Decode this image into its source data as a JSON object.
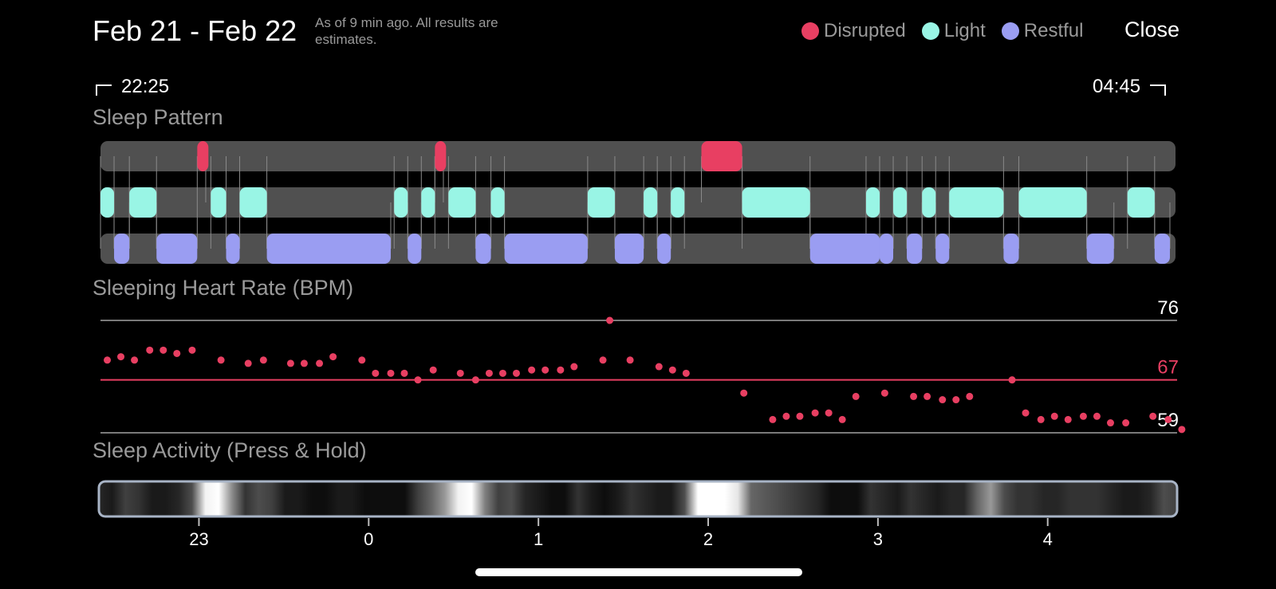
{
  "header": {
    "title": "Feb 21 - Feb 22",
    "subtitle": "As of 9 min ago. All results are estimates.",
    "close_label": "Close"
  },
  "legend": [
    {
      "label": "Disrupted",
      "color": "#e83f62"
    },
    {
      "label": "Light",
      "color": "#99f5e5"
    },
    {
      "label": "Restful",
      "color": "#9a9df2"
    }
  ],
  "time_range": {
    "start": "22:25",
    "end": "04:45"
  },
  "sections": {
    "sleep_pattern": "Sleep Pattern",
    "heart_rate": "Sleeping Heart Rate (BPM)",
    "activity": "Sleep Activity (Press & Hold)"
  },
  "chart_data": [
    {
      "type": "timeline",
      "title": "Sleep Pattern",
      "time_unit": "hours",
      "start_time": "22:25",
      "end_time": "04:45",
      "rows": [
        {
          "name": "Disrupted",
          "segments": [
            [
              0.57,
              0.62
            ],
            [
              1.97,
              2.02
            ],
            [
              3.54,
              3.78
            ]
          ]
        },
        {
          "name": "Light",
          "segments": [
            [
              0.0,
              0.08
            ],
            [
              0.17,
              0.33
            ],
            [
              0.65,
              0.74
            ],
            [
              0.82,
              0.98
            ],
            [
              1.73,
              1.81
            ],
            [
              1.89,
              1.97
            ],
            [
              2.05,
              2.21
            ],
            [
              2.3,
              2.38
            ],
            [
              2.87,
              3.03
            ],
            [
              3.2,
              3.28
            ],
            [
              3.36,
              3.44
            ],
            [
              3.78,
              4.18
            ],
            [
              4.51,
              4.59
            ],
            [
              4.67,
              4.75
            ],
            [
              4.84,
              4.92
            ],
            [
              5.0,
              5.32
            ],
            [
              5.41,
              5.81
            ],
            [
              6.05,
              6.21
            ]
          ]
        },
        {
          "name": "Restful",
          "segments": [
            [
              0.08,
              0.17
            ],
            [
              0.33,
              0.57
            ],
            [
              0.74,
              0.82
            ],
            [
              0.98,
              1.71
            ],
            [
              1.81,
              1.89
            ],
            [
              2.21,
              2.3
            ],
            [
              2.38,
              2.87
            ],
            [
              3.03,
              3.2
            ],
            [
              3.28,
              3.36
            ],
            [
              4.18,
              4.59
            ],
            [
              4.59,
              4.67
            ],
            [
              4.75,
              4.84
            ],
            [
              4.92,
              5.0
            ],
            [
              5.32,
              5.41
            ],
            [
              5.81,
              5.97
            ],
            [
              6.21,
              6.3
            ]
          ]
        }
      ]
    },
    {
      "type": "scatter",
      "title": "Sleeping Heart Rate (BPM)",
      "ylim": [
        59,
        76
      ],
      "reference_lines": [
        {
          "value": 76,
          "label": "76",
          "color": "#7a7a7a"
        },
        {
          "value": 67,
          "label": "67",
          "color": "#e83f62"
        },
        {
          "value": 59,
          "label": "59",
          "color": "#7a7a7a"
        }
      ],
      "x_label_note": "hours after 22:25",
      "points": [
        [
          0.04,
          70
        ],
        [
          0.12,
          70.5
        ],
        [
          0.2,
          70
        ],
        [
          0.29,
          71.5
        ],
        [
          0.37,
          71.5
        ],
        [
          0.45,
          71
        ],
        [
          0.54,
          71.5
        ],
        [
          0.71,
          70
        ],
        [
          0.87,
          69.5
        ],
        [
          0.96,
          70
        ],
        [
          1.12,
          69.5
        ],
        [
          1.2,
          69.5
        ],
        [
          1.29,
          69.5
        ],
        [
          1.37,
          70.5
        ],
        [
          1.54,
          70
        ],
        [
          1.62,
          68
        ],
        [
          1.71,
          68
        ],
        [
          1.79,
          68
        ],
        [
          1.87,
          67
        ],
        [
          1.96,
          68.5
        ],
        [
          2.12,
          68
        ],
        [
          2.21,
          67
        ],
        [
          2.29,
          68
        ],
        [
          2.37,
          68
        ],
        [
          2.45,
          68
        ],
        [
          2.54,
          68.5
        ],
        [
          2.62,
          68.5
        ],
        [
          2.71,
          68.5
        ],
        [
          2.79,
          69
        ],
        [
          2.96,
          70
        ],
        [
          3.0,
          76
        ],
        [
          3.12,
          70
        ],
        [
          3.29,
          69
        ],
        [
          3.37,
          68.5
        ],
        [
          3.45,
          68
        ],
        [
          3.79,
          65
        ],
        [
          3.96,
          61
        ],
        [
          4.04,
          61.5
        ],
        [
          4.12,
          61.5
        ],
        [
          4.21,
          62
        ],
        [
          4.29,
          62
        ],
        [
          4.37,
          61
        ],
        [
          4.45,
          64.5
        ],
        [
          4.62,
          65
        ],
        [
          4.79,
          64.5
        ],
        [
          4.87,
          64.5
        ],
        [
          4.96,
          64
        ],
        [
          5.04,
          64
        ],
        [
          5.12,
          64.5
        ],
        [
          5.37,
          67
        ],
        [
          5.45,
          62
        ],
        [
          5.54,
          61
        ],
        [
          5.62,
          61.5
        ],
        [
          5.7,
          61
        ],
        [
          5.79,
          61.5
        ],
        [
          5.87,
          61.5
        ],
        [
          5.95,
          60.5
        ],
        [
          6.04,
          60.5
        ],
        [
          6.2,
          61.5
        ],
        [
          6.29,
          61
        ],
        [
          6.37,
          59.5
        ]
      ]
    },
    {
      "type": "heatmap",
      "title": "Sleep Activity (Press & Hold)",
      "x_ticks": [
        "23",
        "0",
        "1",
        "2",
        "3",
        "4"
      ],
      "tick_hours_after_start": [
        0.58,
        1.58,
        2.58,
        3.58,
        4.58,
        5.58
      ],
      "intensity": [
        0.15,
        0.1,
        0.25,
        0.2,
        0.1,
        0.1,
        0.15,
        0.3,
        0.95,
        1.0,
        0.55,
        0.2,
        0.3,
        0.25,
        0.1,
        0.1,
        0.05,
        0.05,
        0.1,
        0.1,
        0.05,
        0.05,
        0.05,
        0.05,
        0.25,
        0.4,
        0.6,
        0.95,
        1.0,
        0.5,
        0.25,
        0.3,
        0.15,
        0.1,
        0.05,
        0.05,
        0.2,
        0.1,
        0.05,
        0.1,
        0.2,
        0.15,
        0.1,
        0.1,
        0.3,
        1.0,
        1.0,
        1.0,
        0.9,
        0.4,
        0.35,
        0.3,
        0.25,
        0.2,
        0.15,
        0.05,
        0.05,
        0.05,
        0.2,
        0.15,
        0.1,
        0.2,
        0.15,
        0.1,
        0.15,
        0.15,
        0.4,
        0.6,
        0.3,
        0.2,
        0.2,
        0.15,
        0.15,
        0.2,
        0.2,
        0.2,
        0.15,
        0.1,
        0.1,
        0.15,
        0.3,
        0.25
      ]
    }
  ]
}
